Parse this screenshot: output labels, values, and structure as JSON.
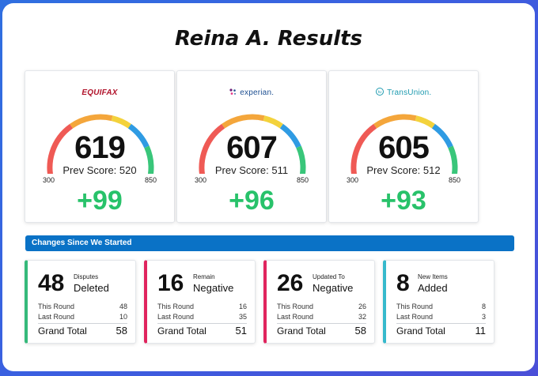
{
  "title": "Reina A. Results",
  "colors": {
    "gauge": [
      "#ef5a55",
      "#f4a63b",
      "#f3d23c",
      "#2f9be3",
      "#39c67a"
    ],
    "delta": "#28c26a",
    "banner": "#0a72c6"
  },
  "score_cards": [
    {
      "bureau": "EQUIFAX",
      "score": "619",
      "prev_label": "Prev Score:",
      "prev": "520",
      "min": "300",
      "max": "850",
      "delta": "+99"
    },
    {
      "bureau": "experian.",
      "score": "607",
      "prev_label": "Prev Score:",
      "prev": "511",
      "min": "300",
      "max": "850",
      "delta": "+96"
    },
    {
      "bureau": "TransUnion.",
      "score": "605",
      "prev_label": "Prev Score:",
      "prev": "512",
      "min": "300",
      "max": "850",
      "delta": "+93"
    }
  ],
  "banner": "Changes Since We Started",
  "stats": [
    {
      "number": "48",
      "small": "Disputes",
      "big": "Deleted",
      "accent": "#35b97a",
      "this_label": "This Round",
      "this": "48",
      "last_label": "Last Round",
      "last": "10",
      "gt_label": "Grand Total",
      "gt": "58"
    },
    {
      "number": "16",
      "small": "Remain",
      "big": "Negative",
      "accent": "#e0245e",
      "this_label": "This Round",
      "this": "16",
      "last_label": "Last Round",
      "last": "35",
      "gt_label": "Grand Total",
      "gt": "51"
    },
    {
      "number": "26",
      "small": "Updated To",
      "big": "Negative",
      "accent": "#e0245e",
      "this_label": "This Round",
      "this": "26",
      "last_label": "Last Round",
      "last": "32",
      "gt_label": "Grand Total",
      "gt": "58"
    },
    {
      "number": "8",
      "small": "New Items",
      "big": "Added",
      "accent": "#36b9cc",
      "this_label": "This Round",
      "this": "8",
      "last_label": "Last Round",
      "last": "3",
      "gt_label": "Grand Total",
      "gt": "11"
    }
  ]
}
